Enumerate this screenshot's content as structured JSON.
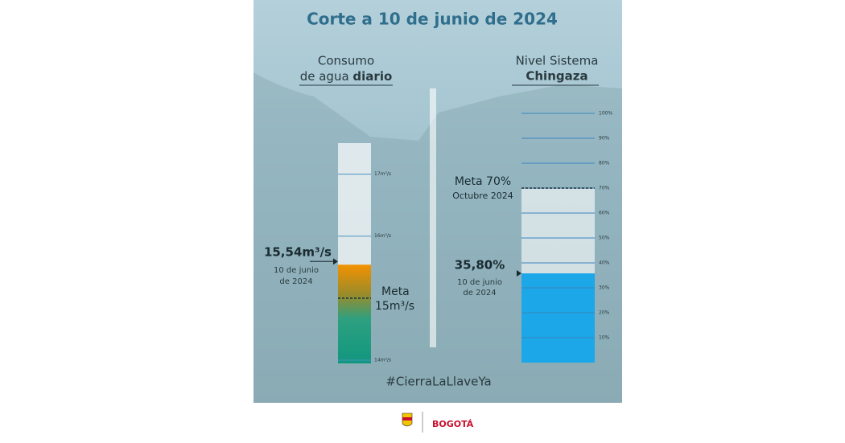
{
  "title": "Corte a 10 de junio de 2024",
  "left": {
    "heading_line1": "Consumo",
    "heading_line2_a": "de agua ",
    "heading_line2_b": "diario",
    "range": [
      14,
      17.5
    ],
    "ticks": [
      {
        "value": 14,
        "label": "14m³/s"
      },
      {
        "value": 16,
        "label": "16m³/s"
      },
      {
        "value": 17,
        "label": "17m³/s"
      }
    ],
    "current": {
      "value": 15.54,
      "label": "15,54m³/s",
      "date_line1": "10 de junio",
      "date_line2": "de 2024"
    },
    "goal": {
      "value": 15,
      "label_line1": "Meta",
      "label_line2": "15m³/s"
    }
  },
  "right": {
    "heading_line1": "Nivel Sistema",
    "heading_line2": "Chingaza",
    "range": [
      0,
      100
    ],
    "ticks": [
      {
        "value": 10,
        "label": "10%"
      },
      {
        "value": 20,
        "label": "20%"
      },
      {
        "value": 30,
        "label": "30%"
      },
      {
        "value": 40,
        "label": "40%"
      },
      {
        "value": 50,
        "label": "50%"
      },
      {
        "value": 60,
        "label": "60%"
      },
      {
        "value": 70,
        "label": "70%"
      },
      {
        "value": 80,
        "label": "80%"
      },
      {
        "value": 90,
        "label": "90%"
      },
      {
        "value": 100,
        "label": "100%"
      }
    ],
    "current": {
      "value": 35.8,
      "label": "35,80%",
      "date_line1": "10 de junio",
      "date_line2": "de 2024"
    },
    "goal": {
      "value": 70,
      "label_line1": "Meta 70%",
      "label_line2": "Octubre 2024"
    }
  },
  "hashtag": "#CierraLaLlaveYa",
  "footer_brand": "BOGOTÁ"
}
